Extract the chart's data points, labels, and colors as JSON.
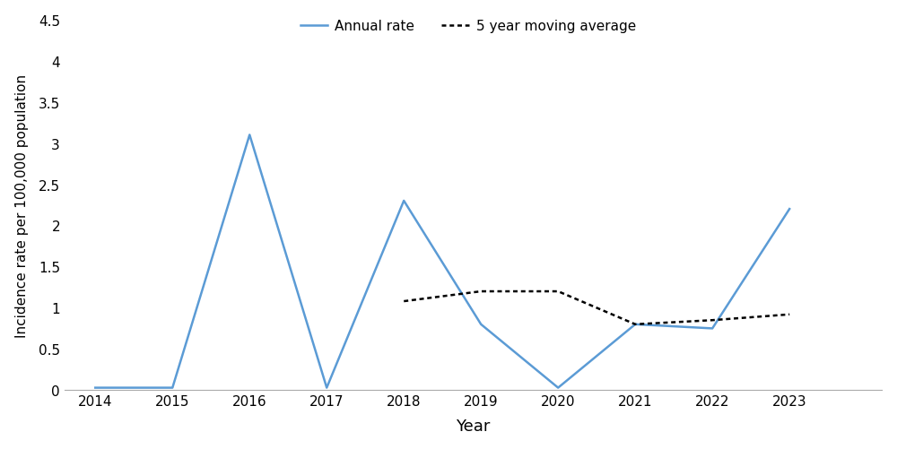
{
  "years": [
    2014,
    2015,
    2016,
    2017,
    2018,
    2019,
    2020,
    2021,
    2022,
    2023
  ],
  "annual_rate": [
    0.03,
    0.03,
    3.1,
    0.03,
    2.3,
    0.8,
    0.03,
    0.8,
    0.75,
    2.2
  ],
  "ma_years": [
    2018,
    2019,
    2020,
    2021,
    2022,
    2023
  ],
  "moving_avg": [
    1.08,
    1.2,
    1.2,
    0.8,
    0.85,
    0.92
  ],
  "annual_color": "#5B9BD5",
  "ma_color": "#000000",
  "xlabel": "Year",
  "ylabel": "Incidence rate per 100,000 population",
  "ylim_min": 0,
  "ylim_max": 4.5,
  "yticks": [
    0,
    0.5,
    1.0,
    1.5,
    2.0,
    2.5,
    3.0,
    3.5,
    4.0,
    4.5
  ],
  "ytick_labels": [
    "0",
    "0.5",
    "1",
    "1.5",
    "2",
    "2.5",
    "3",
    "3.5",
    "4",
    "4.5"
  ],
  "legend_annual": "Annual rate",
  "legend_ma": "5 year moving average",
  "xlabel_fontsize": 13,
  "ylabel_fontsize": 11,
  "tick_fontsize": 11,
  "legend_fontsize": 11,
  "line_width": 1.8,
  "xlim_min": 2013.6,
  "xlim_max": 2024.2
}
